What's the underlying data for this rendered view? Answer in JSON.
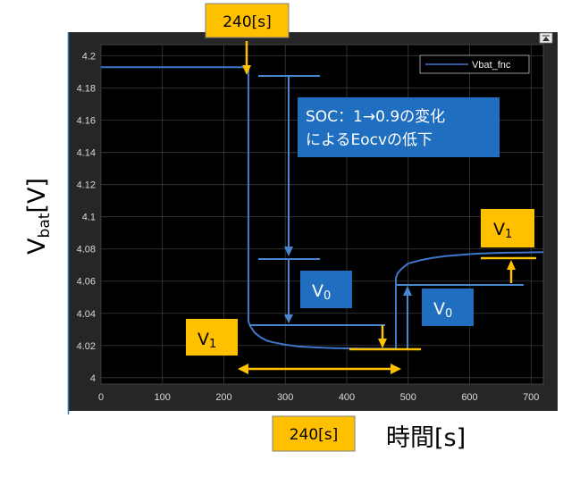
{
  "chart_data": {
    "type": "line",
    "x_ticks": [
      "0",
      "100",
      "200",
      "300",
      "400",
      "500",
      "600",
      "700"
    ],
    "y_ticks": [
      "4",
      "4.02",
      "4.04",
      "4.06",
      "4.08",
      "4.1",
      "4.12",
      "4.14",
      "4.16",
      "4.18",
      "4.2"
    ],
    "xlim": [
      0,
      720
    ],
    "ylim": [
      3.996,
      4.207
    ],
    "grid": true,
    "legend": "top-right",
    "series": [
      {
        "name": "Vbat_fnc",
        "x": [
          0,
          240,
          240,
          243,
          250,
          260,
          270,
          280,
          300,
          320,
          340,
          360,
          380,
          400,
          420,
          440,
          480,
          480,
          483,
          490,
          500,
          520,
          540,
          560,
          580,
          600,
          620,
          640,
          660,
          680,
          700,
          720
        ],
        "y": [
          4.193,
          4.193,
          4.035,
          4.032,
          4.028,
          4.025,
          4.023,
          4.022,
          4.0205,
          4.0195,
          4.019,
          4.0186,
          4.0183,
          4.0182,
          4.0181,
          4.018,
          4.018,
          4.062,
          4.065,
          4.068,
          4.071,
          4.073,
          4.0745,
          4.0755,
          4.0762,
          4.0768,
          4.0772,
          4.0775,
          4.0777,
          4.0778,
          4.0779,
          4.078
        ]
      }
    ]
  },
  "axes": {
    "ylabel_main": "V",
    "ylabel_sub": "bat",
    "ylabel_unit": "[V]",
    "xlabel": "時間[s]"
  },
  "annotations": {
    "top_label": "240[s]",
    "bottom_label": "240[s]",
    "soc_line1": "SOC：1→0.9の変化",
    "soc_line2": "によるEocvの低下",
    "v0_main": "V",
    "v0_sub": "0",
    "v1_main": "V",
    "v1_sub": "1"
  },
  "colors": {
    "figure_bg": "#262626",
    "axes_bg": "#000000",
    "grid": "#3a3a3a",
    "line": "#3d78c8",
    "yellow_box": "#ffc000",
    "blue_box": "#1f6ebf",
    "marker_line": "#4a86d0"
  }
}
